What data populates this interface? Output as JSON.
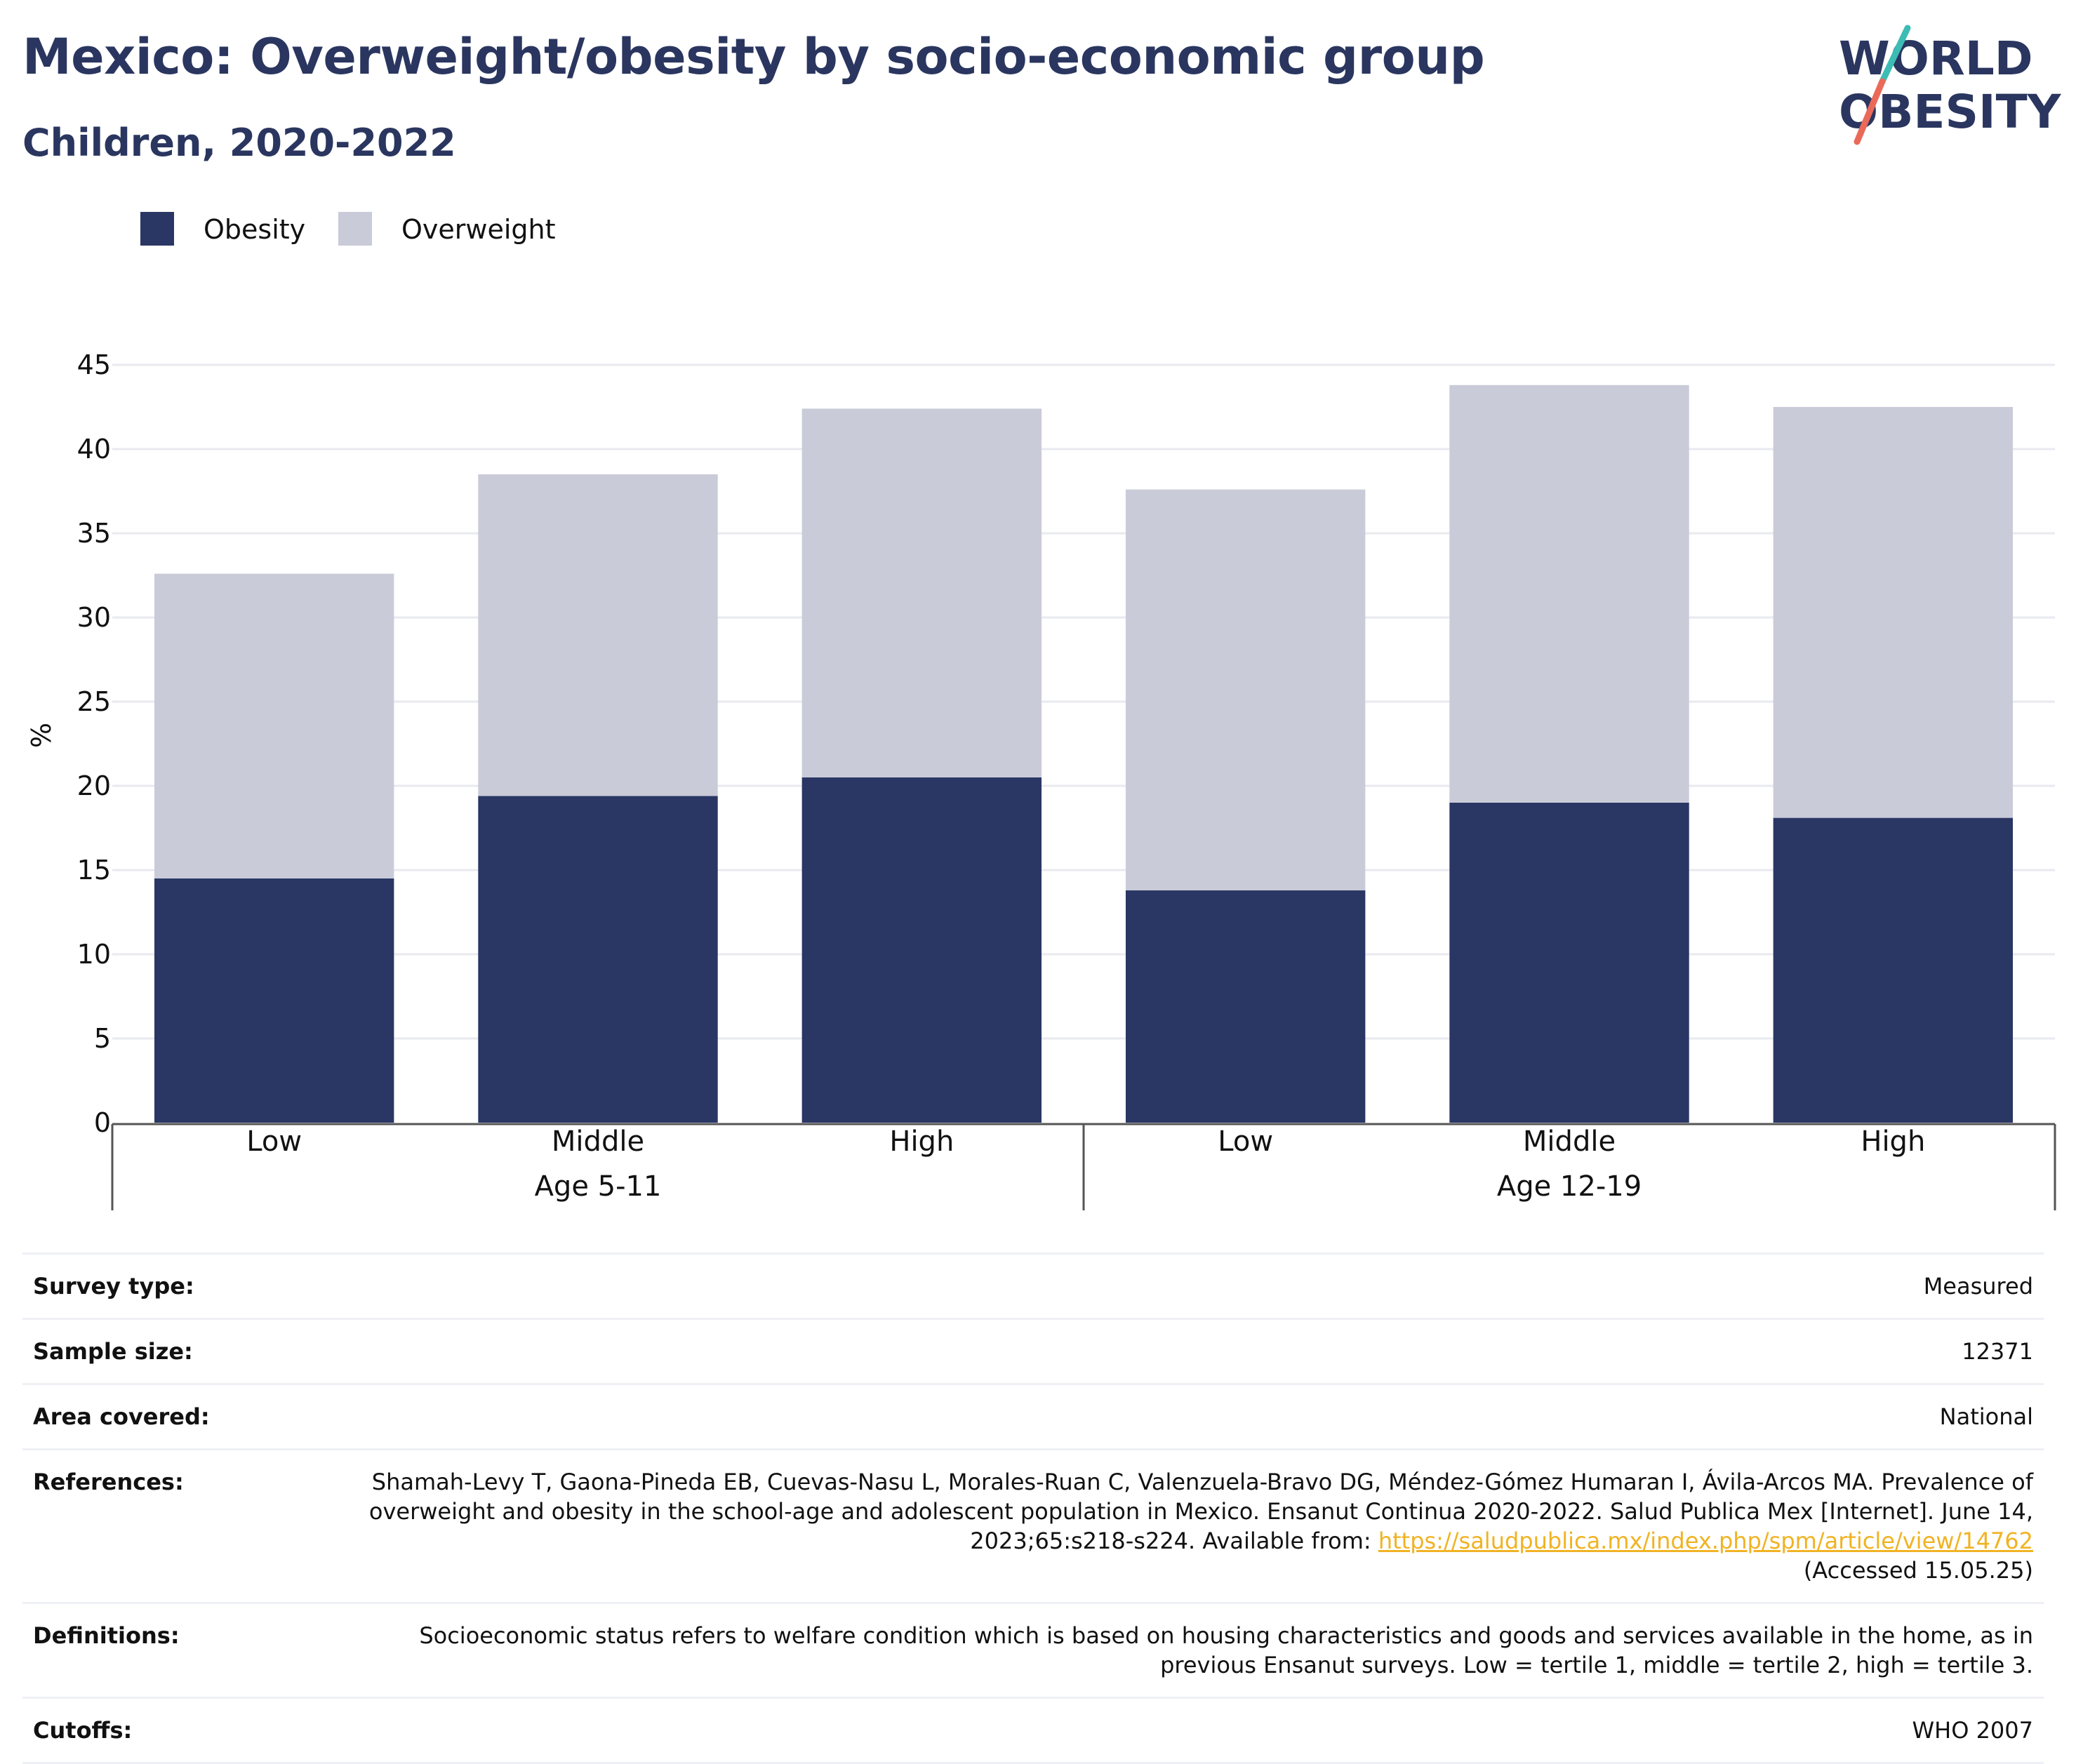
{
  "header": {
    "title": "Mexico: Overweight/obesity by socio-economic group",
    "subtitle": "Children, 2020-2022"
  },
  "logo": {
    "line1": "WORLD",
    "line2": "OBESITY"
  },
  "colors": {
    "obesity": "#2a3664",
    "overweight": "#c9cbd8",
    "title": "#2a365f",
    "logo_teal": "#3cbcb4",
    "logo_red": "#ea6a5a",
    "link": "#f0b323"
  },
  "chart_data": {
    "type": "bar",
    "stacked": true,
    "groups": [
      {
        "label": "Age 5-11",
        "categories": [
          "Low",
          "Middle",
          "High"
        ]
      },
      {
        "label": "Age 12-19",
        "categories": [
          "Low",
          "Middle",
          "High"
        ]
      }
    ],
    "series": [
      {
        "name": "Obesity",
        "values": [
          14.5,
          19.4,
          20.5,
          13.8,
          19.0,
          18.1
        ]
      },
      {
        "name": "Overweight",
        "values": [
          18.1,
          19.1,
          21.9,
          23.8,
          24.8,
          24.4
        ]
      }
    ],
    "totals": [
      32.6,
      38.5,
      42.4,
      37.6,
      43.8,
      42.5
    ],
    "ylabel": "%",
    "ylim": [
      0,
      45
    ],
    "yticks": [
      0,
      5,
      10,
      15,
      20,
      25,
      30,
      35,
      40,
      45
    ],
    "legend_position": "top-left",
    "grid": true
  },
  "meta": {
    "survey_type": {
      "label": "Survey type:",
      "value": "Measured"
    },
    "sample_size": {
      "label": "Sample size:",
      "value": "12371"
    },
    "area_covered": {
      "label": "Area covered:",
      "value": "National"
    },
    "references": {
      "label": "References:",
      "text": "Shamah-Levy T, Gaona-Pineda EB, Cuevas-Nasu L, Morales-Ruan C, Valenzuela-Bravo DG, Méndez-Gómez Humaran I, Ávila-Arcos MA. Prevalence of overweight and obesity in the school-age and adolescent population in Mexico. Ensanut Continua 2020-2022. Salud Publica Mex [Internet]. June 14, 2023;65:s218-s224. Available from:",
      "link": "https://saludpublica.mx/index.php/spm/article/view/14762",
      "accessed": "(Accessed 15.05.25)"
    },
    "definitions": {
      "label": "Definitions:",
      "value": "Socioeconomic status refers to welfare condition which is based on housing characteristics and goods and services available in the home, as in previous Ensanut surveys. Low = tertile 1, middle = tertile 2, high = tertile 3."
    },
    "cutoffs": {
      "label": "Cutoffs:",
      "value": "WHO 2007"
    }
  }
}
